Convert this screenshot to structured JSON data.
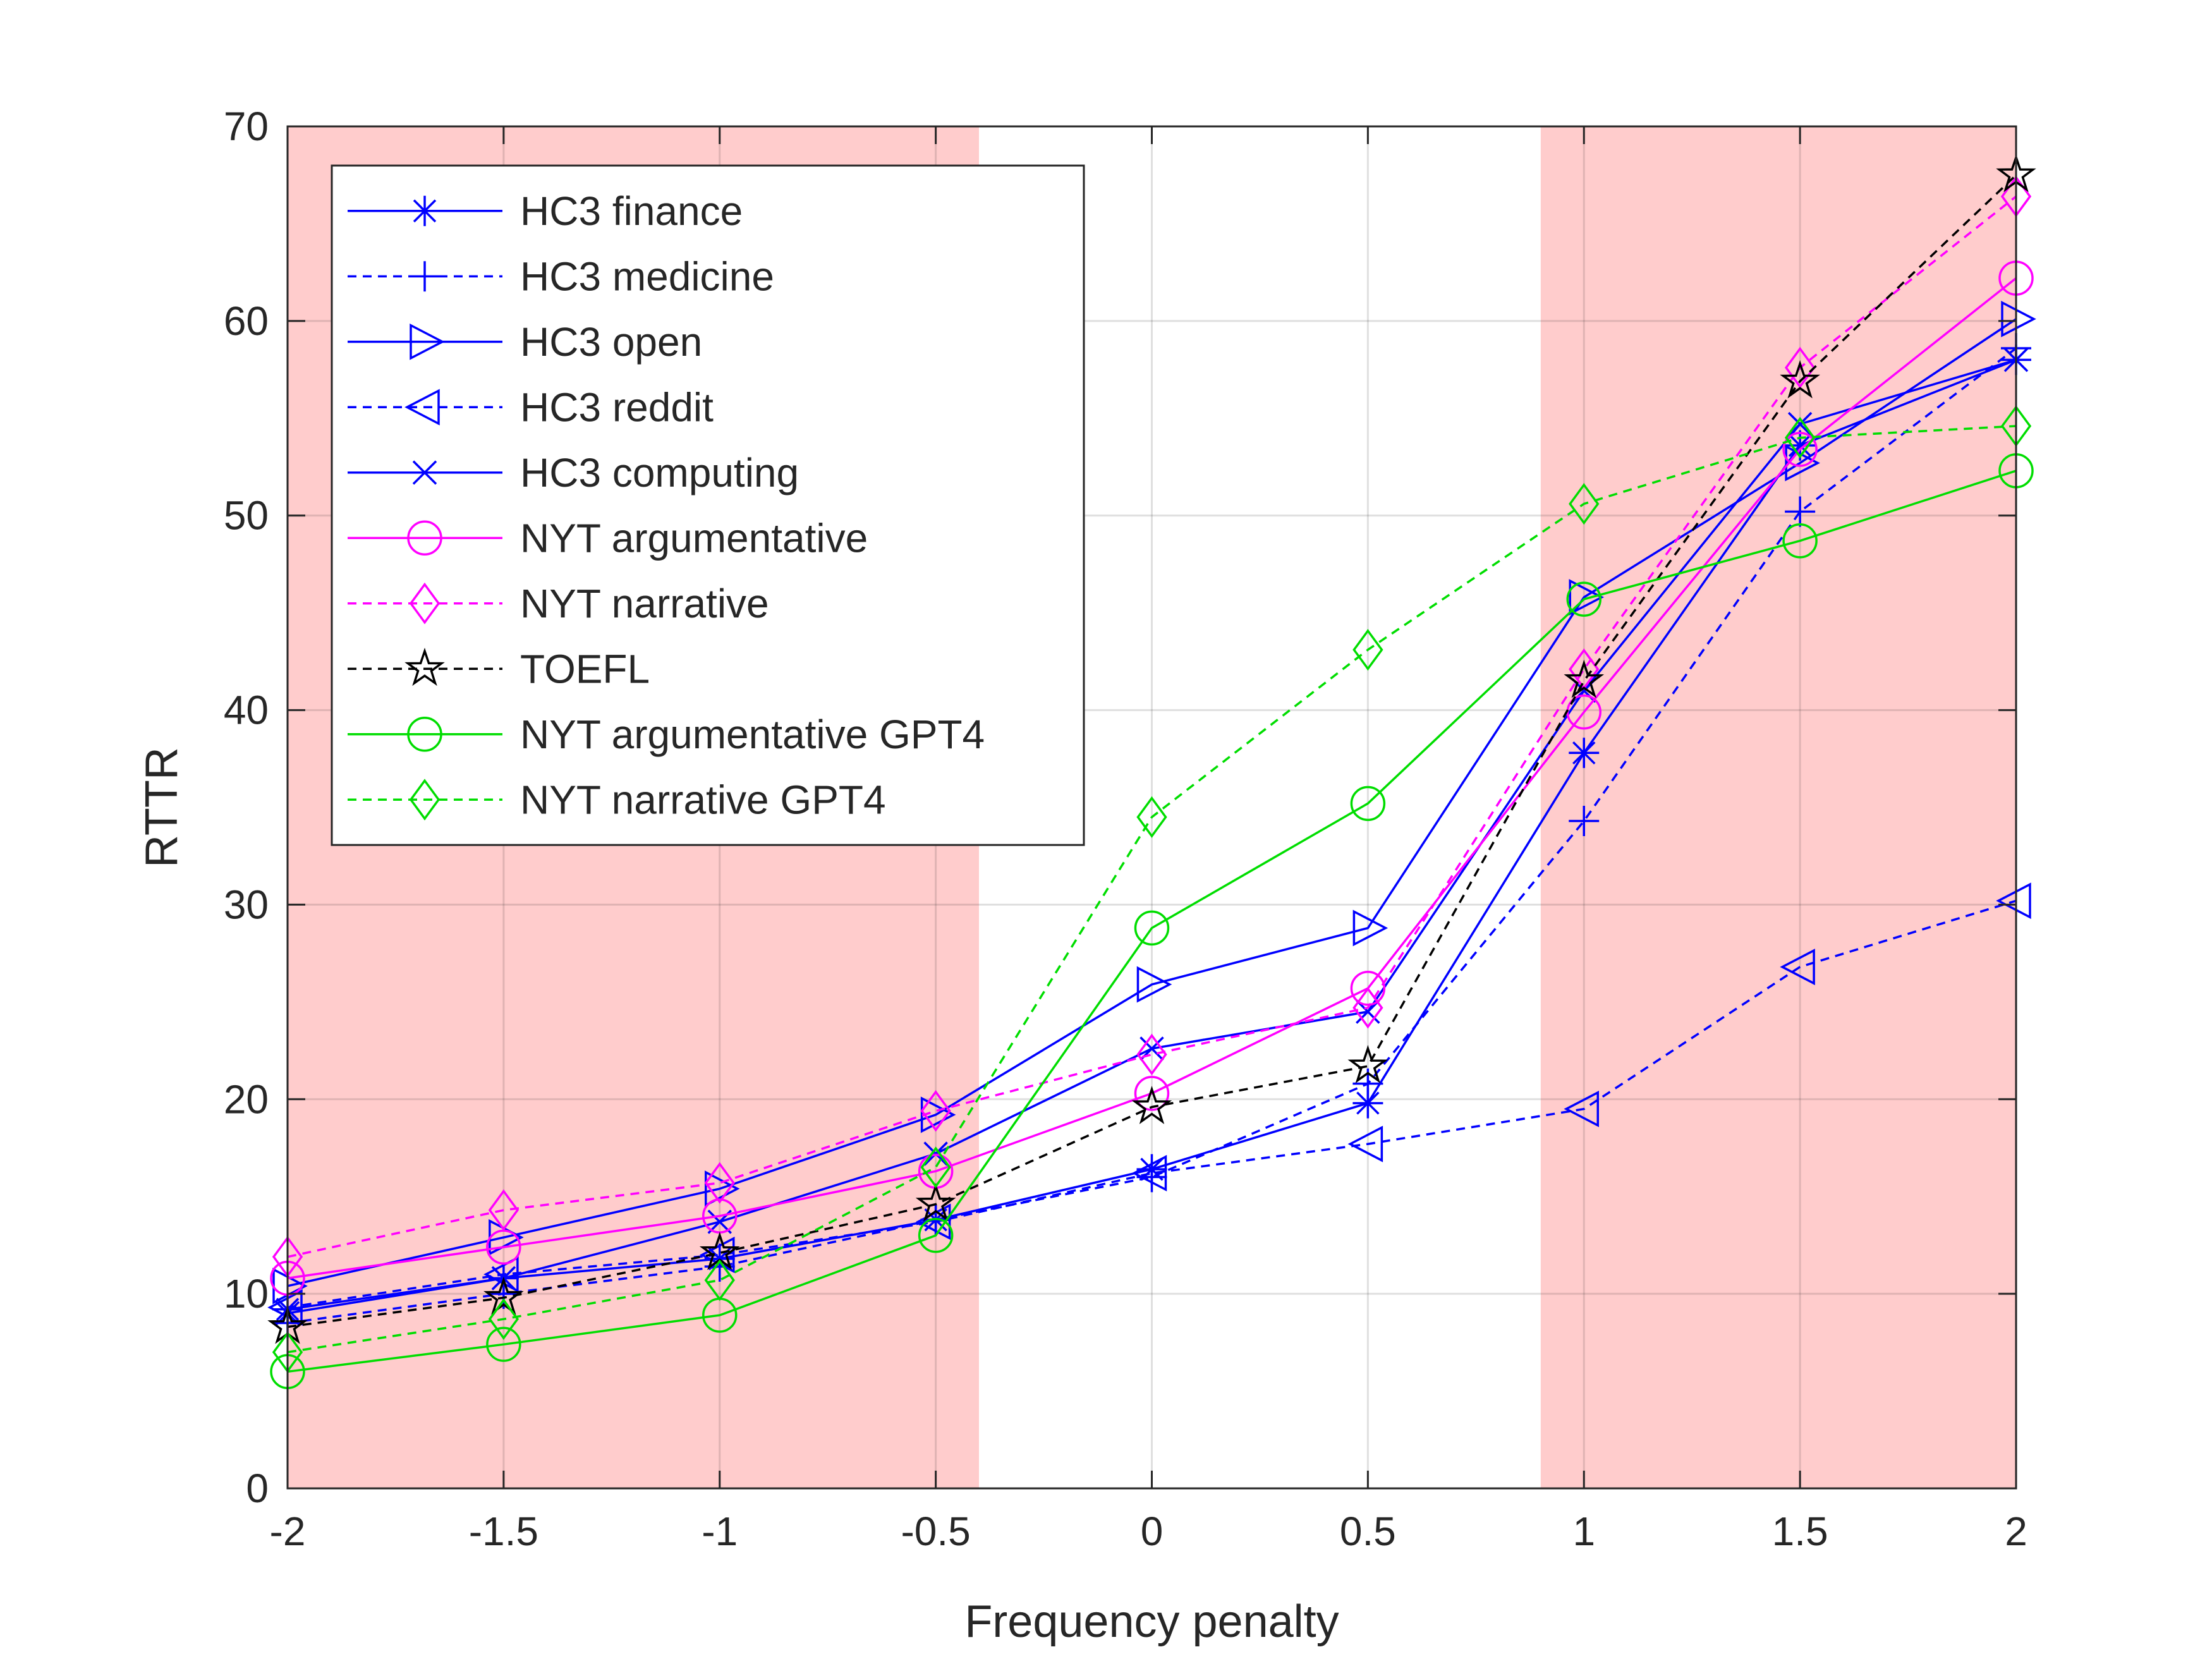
{
  "chart_data": {
    "type": "line",
    "title": "",
    "xlabel": "Frequency penalty",
    "ylabel": "RTTR",
    "x": [
      -2,
      -1.5,
      -1,
      -0.5,
      0,
      0.5,
      1,
      1.5,
      2
    ],
    "x_tick_labels": [
      "-2",
      "-1.5",
      "-1",
      "-0.5",
      "0",
      "0.5",
      "1",
      "1.5",
      "2"
    ],
    "y_tick_labels": [
      "0",
      "10",
      "20",
      "30",
      "40",
      "50",
      "60",
      "70"
    ],
    "xlim": [
      -2,
      2
    ],
    "ylim": [
      0,
      70
    ],
    "grid": true,
    "legend_position": "top-left",
    "shaded_ranges": [
      [
        -2,
        -0.4
      ],
      [
        0.9,
        2
      ]
    ],
    "shade_color": "#ffcccc",
    "series": [
      {
        "name": "HC3 finance",
        "color": "#0000ff",
        "dashed": false,
        "marker": "asterisk",
        "values": [
          9.2,
          10.8,
          11.8,
          13.8,
          16.4,
          19.8,
          37.8,
          53.6,
          58.0
        ]
      },
      {
        "name": "HC3 medicine",
        "color": "#0000ff",
        "dashed": true,
        "marker": "plus",
        "values": [
          8.5,
          10.0,
          11.4,
          13.8,
          16.0,
          20.8,
          34.3,
          50.2,
          58.6
        ]
      },
      {
        "name": "HC3 open",
        "color": "#0000ff",
        "dashed": false,
        "marker": "triangle-right",
        "values": [
          10.4,
          12.9,
          15.4,
          19.2,
          25.9,
          28.8,
          45.8,
          52.7,
          60.1
        ]
      },
      {
        "name": "HC3 reddit",
        "color": "#0000ff",
        "dashed": true,
        "marker": "triangle-left",
        "values": [
          9.3,
          11.0,
          12.0,
          13.7,
          16.2,
          17.7,
          19.5,
          26.8,
          30.2
        ]
      },
      {
        "name": "HC3 computing",
        "color": "#0000ff",
        "dashed": false,
        "marker": "x",
        "values": [
          9.0,
          10.8,
          13.7,
          17.2,
          22.6,
          24.5,
          41.0,
          54.7,
          58.0
        ]
      },
      {
        "name": "NYT argumentative",
        "color": "#ff00ff",
        "dashed": false,
        "marker": "circle",
        "values": [
          10.8,
          12.4,
          14.0,
          16.3,
          20.3,
          25.7,
          39.9,
          53.4,
          62.2
        ]
      },
      {
        "name": "NYT narrative",
        "color": "#ff00ff",
        "dashed": true,
        "marker": "diamond",
        "values": [
          11.9,
          14.3,
          15.7,
          19.4,
          22.3,
          24.7,
          42.1,
          57.6,
          66.4
        ]
      },
      {
        "name": "TOEFL",
        "color": "#000000",
        "dashed": true,
        "marker": "pentagram",
        "values": [
          8.3,
          9.8,
          12.1,
          14.6,
          19.6,
          21.7,
          41.5,
          56.9,
          67.5
        ]
      },
      {
        "name": "NYT argumentative GPT4",
        "color": "#00dd00",
        "dashed": false,
        "marker": "circle",
        "values": [
          6.0,
          7.4,
          8.9,
          13.0,
          28.8,
          35.2,
          45.7,
          48.7,
          52.3
        ]
      },
      {
        "name": "NYT narrative GPT4",
        "color": "#00dd00",
        "dashed": true,
        "marker": "diamond",
        "values": [
          7.0,
          8.7,
          10.7,
          16.5,
          34.5,
          43.1,
          50.6,
          54.0,
          54.6
        ]
      }
    ]
  }
}
